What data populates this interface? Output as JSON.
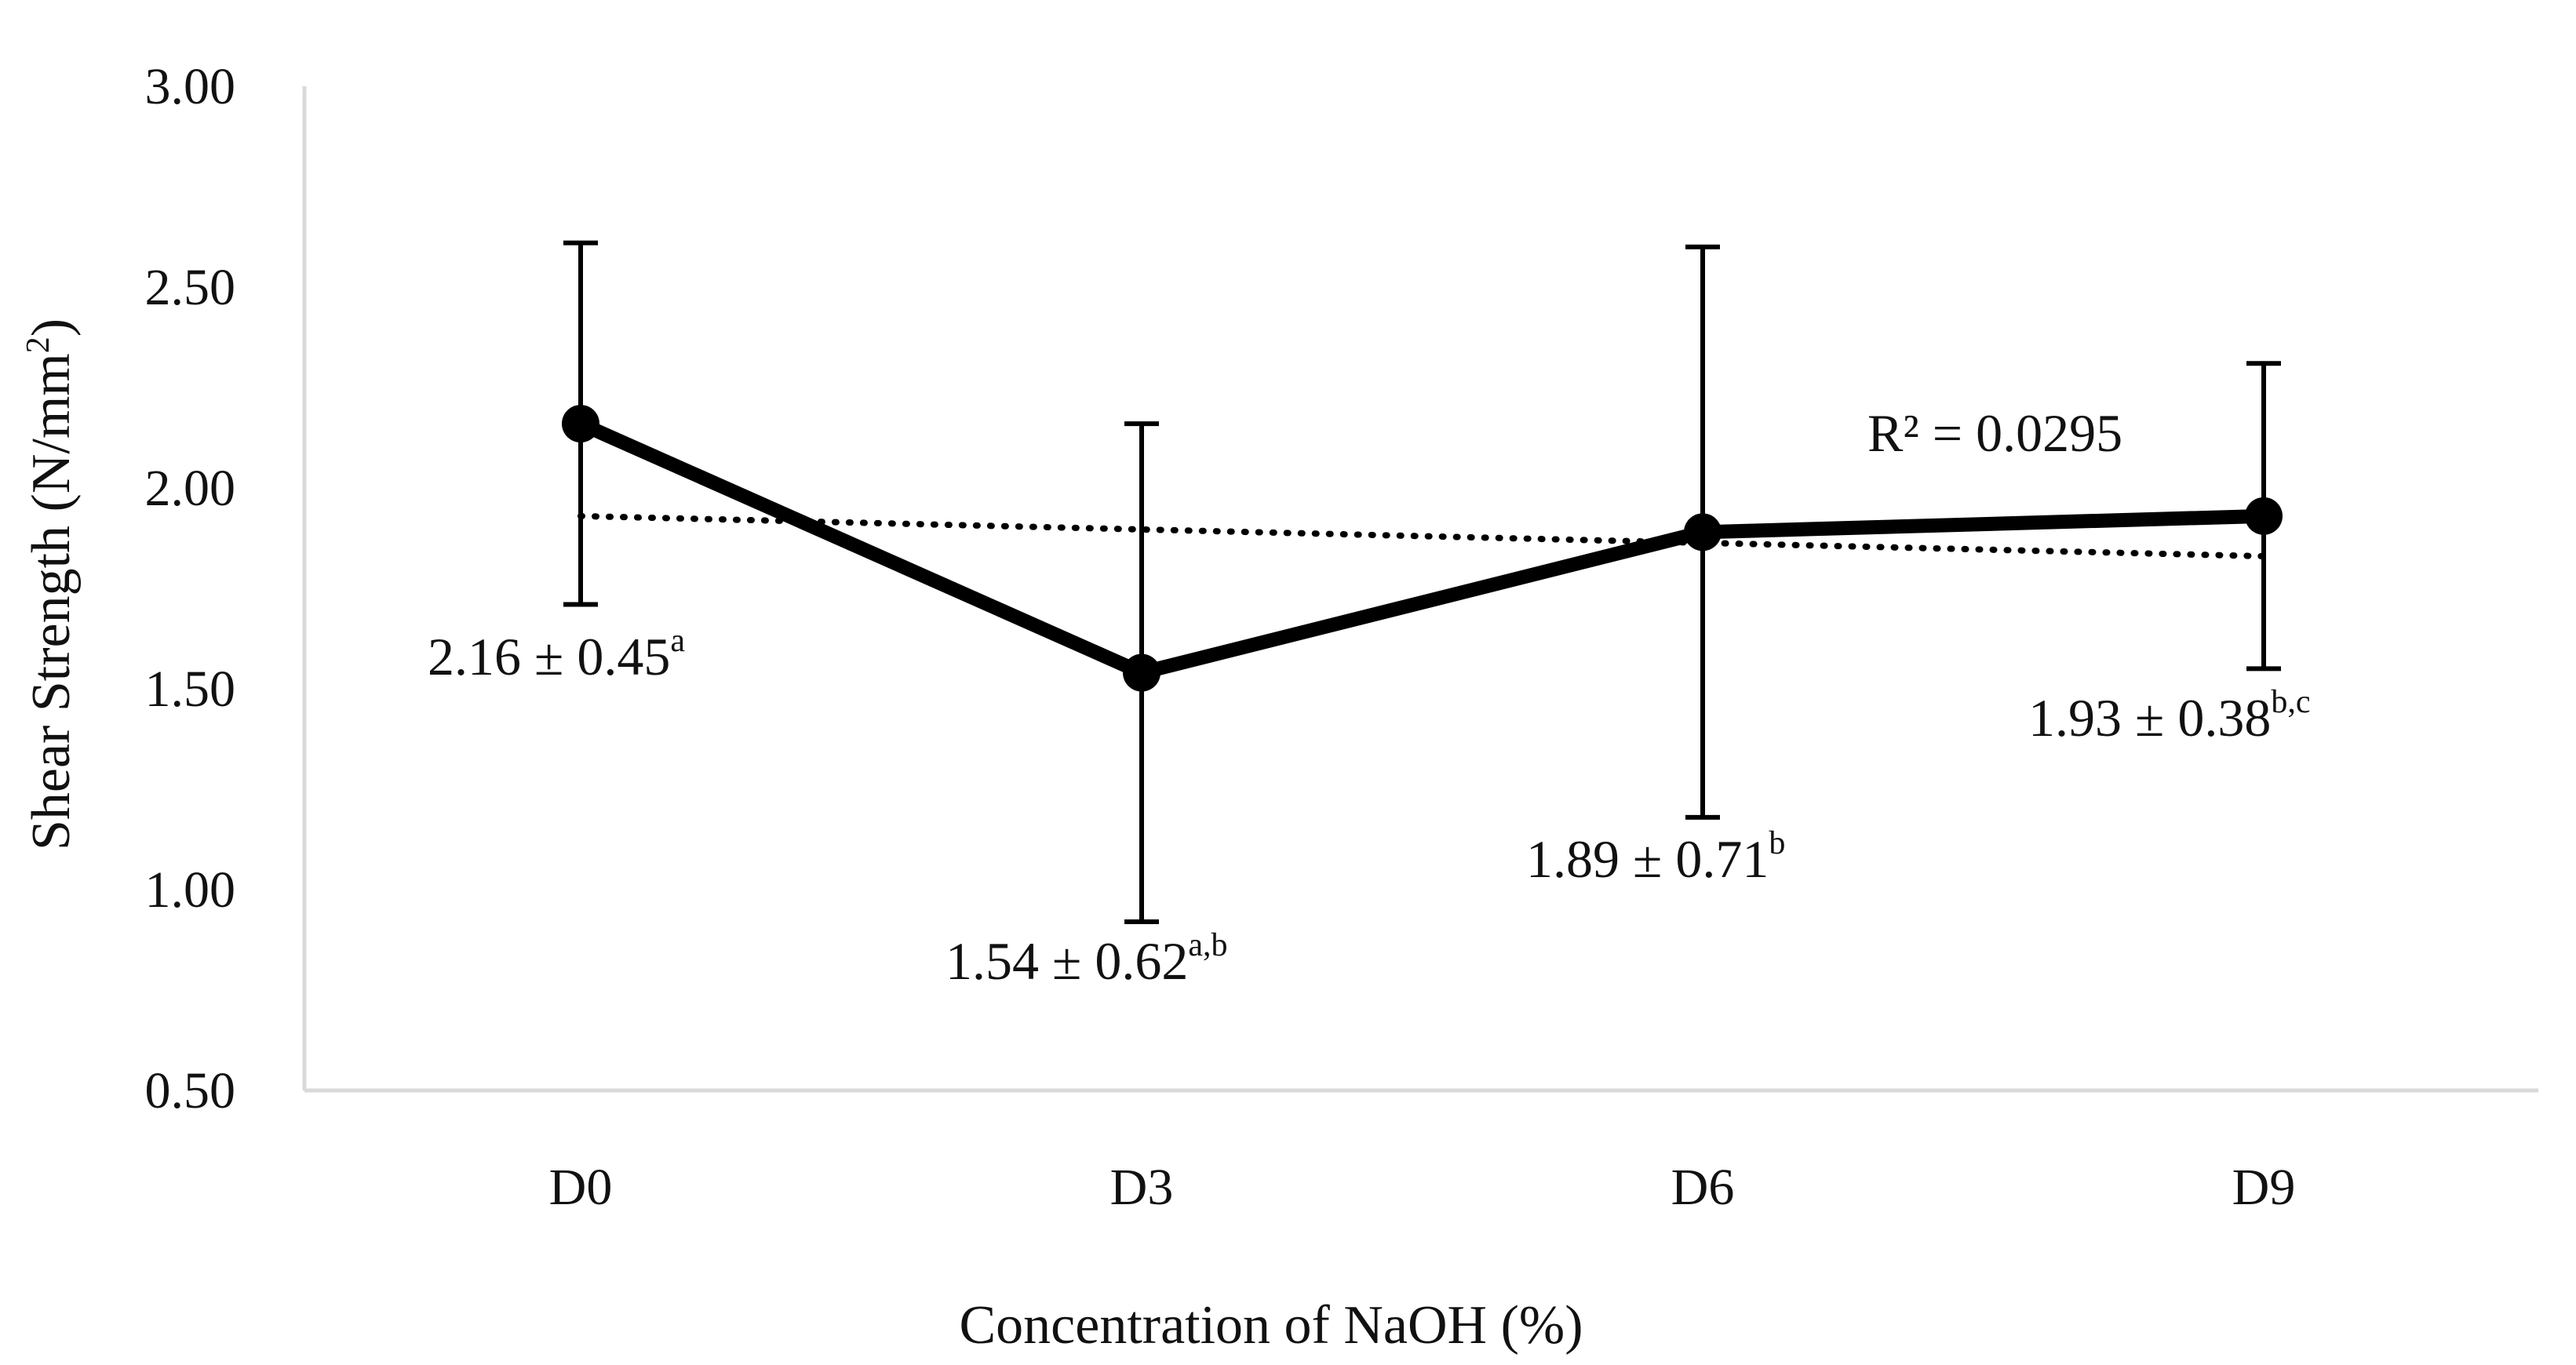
{
  "chart_data": {
    "type": "line",
    "title": "",
    "xlabel": "Concentration of NaOH (%)",
    "ylabel": "Shear Strength (N/mm",
    "ylabel_sup": "2",
    "ylabel_close": ")",
    "ylim": [
      0.5,
      3.0
    ],
    "yticks": [
      0.5,
      1.0,
      1.5,
      2.0,
      2.5,
      3.0
    ],
    "ytick_labels": [
      "0.50",
      "1.00",
      "1.50",
      "2.00",
      "2.50",
      "3.00"
    ],
    "categories": [
      "D0",
      "D3",
      "D6",
      "D9"
    ],
    "series": [
      {
        "name": "Shear Strength",
        "values": [
          2.16,
          1.54,
          1.89,
          1.93
        ],
        "errors": [
          0.45,
          0.62,
          0.71,
          0.38
        ]
      }
    ],
    "trendline": {
      "type": "linear",
      "start": 1.93,
      "end": 1.83,
      "r2_label": "R² = 0.0295"
    },
    "annotations": [
      {
        "text": "2.16 ± 0.45",
        "sup": "a"
      },
      {
        "text": "1.54 ± 0.62",
        "sup": "a,b"
      },
      {
        "text": "1.89 ± 0.71",
        "sup": "b"
      },
      {
        "text": "1.93 ± 0.38",
        "sup": "b,c"
      }
    ],
    "colors": {
      "line": "#000000",
      "axis": "#d9d9d9",
      "text": "#111111"
    }
  }
}
